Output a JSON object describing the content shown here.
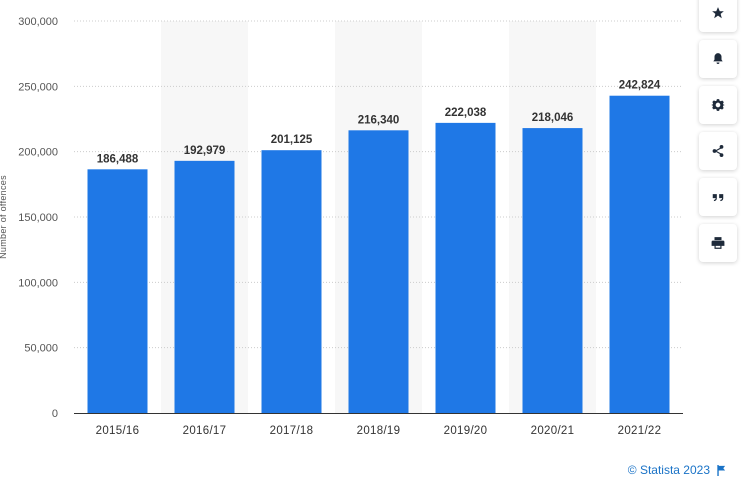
{
  "chart_data": {
    "type": "bar",
    "categories": [
      "2015/16",
      "2016/17",
      "2017/18",
      "2018/19",
      "2019/20",
      "2020/21",
      "2021/22"
    ],
    "values": [
      186488,
      192979,
      201125,
      216340,
      222038,
      218046,
      242824
    ],
    "value_labels": [
      "186,488",
      "192,979",
      "201,125",
      "216,340",
      "222,038",
      "218,046",
      "242,824"
    ],
    "ylabel": "Number of offences",
    "ylim": [
      0,
      300000
    ],
    "yticks": [
      0,
      50000,
      100000,
      150000,
      200000,
      250000,
      300000
    ],
    "ytick_labels": [
      "0",
      "50,000",
      "100,000",
      "150,000",
      "200,000",
      "250,000",
      "300,000"
    ],
    "bar_color": "#1f78e6",
    "grid": true,
    "legend": "none"
  },
  "toolbar": {
    "icons": [
      "star-icon",
      "bell-icon",
      "gear-icon",
      "share-icon",
      "quote-icon",
      "print-icon"
    ]
  },
  "credit": {
    "text": "© Statista 2023",
    "color": "#1a73c7"
  }
}
